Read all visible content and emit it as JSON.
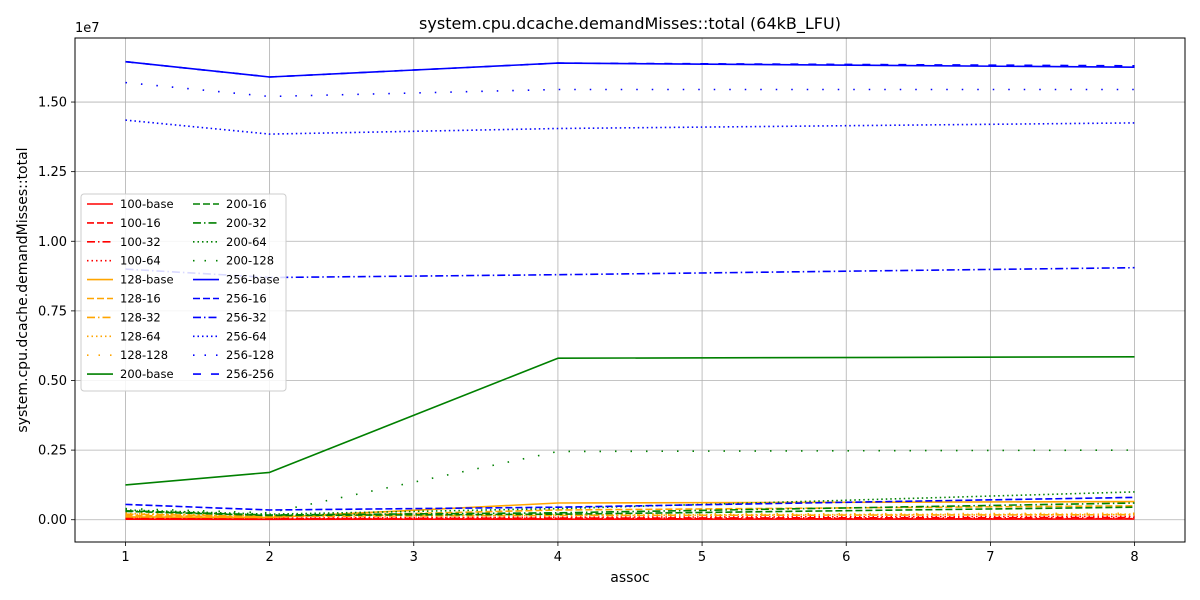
{
  "chart_data": {
    "type": "line",
    "title": "system.cpu.dcache.demandMisses::total (64kB_LFU)",
    "xlabel": "assoc",
    "ylabel": "system.cpu.dcache.demandMisses::total",
    "y_scale_label": "1e7",
    "x": [
      1,
      2,
      4,
      8
    ],
    "xticks": [
      1,
      2,
      3,
      4,
      5,
      6,
      7,
      8
    ],
    "xlim": [
      0.65,
      8.35
    ],
    "yticks": [
      0,
      2500000,
      5000000,
      7500000,
      10000000,
      12500000,
      15000000
    ],
    "ytick_labels": [
      "0.00",
      "0.25",
      "0.50",
      "0.75",
      "1.00",
      "1.25",
      "1.50"
    ],
    "ylim": [
      -800000,
      17300000
    ],
    "grid": true,
    "legend_position": "center-left",
    "legend_columns": 2,
    "series": [
      {
        "name": "100-base",
        "color": "#ff0000",
        "style": "solid",
        "values": [
          20000,
          15000,
          20000,
          25000
        ]
      },
      {
        "name": "100-16",
        "color": "#ff0000",
        "style": "dashed",
        "values": [
          30000,
          25000,
          30000,
          35000
        ]
      },
      {
        "name": "100-32",
        "color": "#ff0000",
        "style": "dashdot",
        "values": [
          50000,
          40000,
          60000,
          80000
        ]
      },
      {
        "name": "100-64",
        "color": "#ff0000",
        "style": "dotted",
        "values": [
          80000,
          60000,
          90000,
          120000
        ]
      },
      {
        "name": "128-base",
        "color": "#ffa500",
        "style": "solid",
        "values": [
          100000,
          80000,
          600000,
          650000
        ]
      },
      {
        "name": "128-16",
        "color": "#ffa500",
        "style": "dashed",
        "values": [
          150000,
          100000,
          350000,
          500000
        ]
      },
      {
        "name": "128-32",
        "color": "#ffa500",
        "style": "dashdot",
        "values": [
          200000,
          120000,
          150000,
          180000
        ]
      },
      {
        "name": "128-64",
        "color": "#ffa500",
        "style": "dotted",
        "values": [
          220000,
          140000,
          170000,
          200000
        ]
      },
      {
        "name": "128-128",
        "color": "#ffa500",
        "style": "loosedot",
        "values": [
          250000,
          160000,
          200000,
          230000
        ]
      },
      {
        "name": "200-base",
        "color": "#008000",
        "style": "solid",
        "values": [
          1250000,
          1700000,
          5800000,
          5850000
        ]
      },
      {
        "name": "200-16",
        "color": "#008000",
        "style": "dashed",
        "values": [
          300000,
          150000,
          200000,
          450000
        ]
      },
      {
        "name": "200-32",
        "color": "#008000",
        "style": "dashdot",
        "values": [
          320000,
          170000,
          250000,
          600000
        ]
      },
      {
        "name": "200-64",
        "color": "#008000",
        "style": "dotted",
        "values": [
          350000,
          200000,
          400000,
          1000000
        ]
      },
      {
        "name": "200-128",
        "color": "#008000",
        "style": "loosedot",
        "values": [
          400000,
          250000,
          2450000,
          2500000
        ]
      },
      {
        "name": "256-base",
        "color": "#0000ff",
        "style": "solid",
        "values": [
          16450000,
          15900000,
          16400000,
          16250000
        ]
      },
      {
        "name": "256-16",
        "color": "#0000ff",
        "style": "dashed",
        "values": [
          550000,
          350000,
          450000,
          800000
        ]
      },
      {
        "name": "256-32",
        "color": "#0000ff",
        "style": "dashdot",
        "values": [
          9000000,
          8700000,
          8800000,
          9050000
        ]
      },
      {
        "name": "256-64",
        "color": "#0000ff",
        "style": "dotted",
        "values": [
          14350000,
          13850000,
          14050000,
          14250000
        ]
      },
      {
        "name": "256-128",
        "color": "#0000ff",
        "style": "loosedot",
        "values": [
          15700000,
          15200000,
          15450000,
          15450000
        ]
      },
      {
        "name": "256-256",
        "color": "#0000ff",
        "style": "loosedash",
        "values": [
          16450000,
          15900000,
          16400000,
          16300000
        ]
      }
    ]
  }
}
